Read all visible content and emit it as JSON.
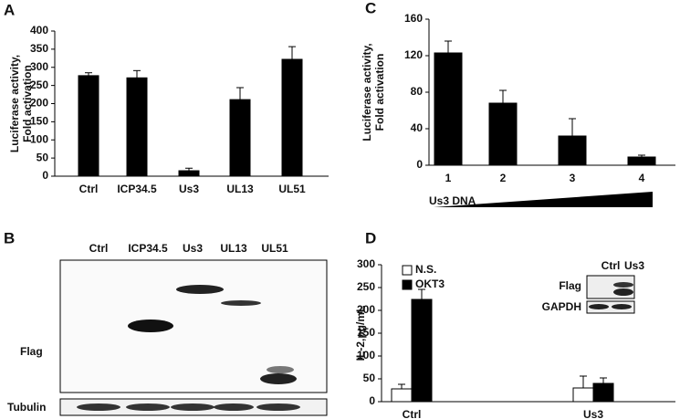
{
  "chart_data": [
    {
      "type": "bar",
      "panel": "A",
      "ylabel": [
        "Luciferase activity,",
        "Fold activation"
      ],
      "categories": [
        "Ctrl",
        "ICP34.5",
        "Us3",
        "UL13",
        "UL51"
      ],
      "series": [
        {
          "color": "#000000",
          "values": [
            277,
            271,
            15,
            211,
            322
          ],
          "errors": [
            8,
            20,
            7,
            33,
            35
          ]
        }
      ],
      "ylim": [
        0,
        400
      ],
      "yticks": [
        0,
        50,
        100,
        150,
        200,
        250,
        300,
        350,
        400
      ]
    },
    {
      "type": "bar",
      "panel": "C",
      "ylabel": [
        "Luciferase activity,",
        "Fold activation"
      ],
      "categories": [
        "1",
        "2",
        "3",
        "4"
      ],
      "series": [
        {
          "color": "#000000",
          "values": [
            123,
            68,
            32,
            9
          ],
          "errors": [
            13,
            14,
            19,
            2
          ]
        }
      ],
      "ylim": [
        0,
        160
      ],
      "yticks": [
        0,
        40,
        80,
        120,
        160
      ],
      "annotation": "Us3 DNA"
    },
    {
      "type": "bar",
      "panel": "D",
      "ylabel": [
        "IL-2,pg/mL"
      ],
      "categories": [
        "Ctrl",
        "Us3"
      ],
      "series": [
        {
          "name": "N.S.",
          "color": "#ffffff",
          "values": [
            28,
            30
          ],
          "errors": [
            10,
            26
          ]
        },
        {
          "name": "OKT3",
          "color": "#000000",
          "values": [
            224,
            40
          ],
          "errors": [
            22,
            12
          ]
        }
      ],
      "ylim": [
        0,
        300
      ],
      "yticks": [
        0,
        50,
        100,
        150,
        200,
        250,
        300
      ],
      "inset": {
        "columns": [
          "Ctrl",
          "Us3"
        ],
        "rows": [
          "Flag",
          "GAPDH"
        ]
      }
    }
  ],
  "blot": {
    "panel": "B",
    "lanes": [
      "Ctrl",
      "ICP34.5",
      "Us3",
      "UL13",
      "UL51"
    ],
    "rows": [
      "Flag",
      "Tubulin"
    ]
  }
}
